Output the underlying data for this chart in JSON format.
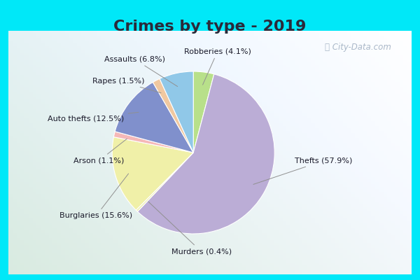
{
  "title": "Crimes by type - 2019",
  "slice_labels": [
    "Robberies",
    "Thefts",
    "Murders",
    "Burglaries",
    "Arson",
    "Auto thefts",
    "Rapes",
    "Assaults"
  ],
  "slice_values": [
    4.1,
    57.9,
    0.4,
    15.6,
    1.1,
    12.5,
    1.5,
    6.8
  ],
  "slice_colors": [
    "#b8e08a",
    "#bbadd6",
    "#f0f0b0",
    "#f0f0a8",
    "#f5b8b8",
    "#8090cc",
    "#f0c8a0",
    "#90c8e8"
  ],
  "bg_outer": "#00e8f8",
  "bg_chart_topleft": "#e0f0e8",
  "bg_chart_topright": "#e8eef8",
  "bg_chart_bottomleft": "#c8e8d8",
  "title_fontsize": 16,
  "label_fontsize": 8,
  "title_color": "#2a2a3a",
  "label_color": "#1a1a2a",
  "watermark": "City-Data.com"
}
